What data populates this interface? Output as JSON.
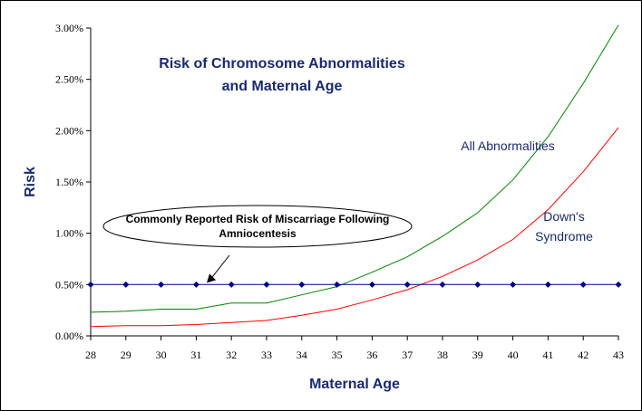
{
  "chart_data": {
    "type": "line",
    "title_lines": [
      "Risk of Chromosome Abnormalities",
      "and Maternal Age"
    ],
    "xlabel": "Maternal Age",
    "ylabel": "Risk",
    "x": [
      28,
      29,
      30,
      31,
      32,
      33,
      34,
      35,
      36,
      37,
      38,
      39,
      40,
      41,
      42,
      43
    ],
    "xlim": [
      28,
      43
    ],
    "ylim": [
      0,
      0.03
    ],
    "yticks": [
      "0.00%",
      "0.50%",
      "1.00%",
      "1.50%",
      "2.00%",
      "2.50%",
      "3.00%"
    ],
    "ytick_values": [
      0,
      0.005,
      0.01,
      0.015,
      0.02,
      0.025,
      0.03
    ],
    "grid": false,
    "series": [
      {
        "name": "All Abnormalities",
        "color": "#008000",
        "values": [
          0.0023,
          0.0024,
          0.0026,
          0.0026,
          0.0032,
          0.0032,
          0.004,
          0.0048,
          0.0062,
          0.0077,
          0.0097,
          0.012,
          0.0152,
          0.0194,
          0.0246,
          0.0303
        ]
      },
      {
        "name": "Down's Syndrome",
        "name_lines": [
          "Down's",
          "Syndrome"
        ],
        "color": "#ff0000",
        "values": [
          0.0009,
          0.001,
          0.001,
          0.0011,
          0.0013,
          0.0015,
          0.002,
          0.0026,
          0.0035,
          0.0045,
          0.0058,
          0.0074,
          0.0094,
          0.0123,
          0.016,
          0.0203
        ]
      },
      {
        "name": "Miscarriage risk",
        "color": "#000080",
        "marker": "diamond",
        "values": [
          0.005,
          0.005,
          0.005,
          0.005,
          0.005,
          0.005,
          0.005,
          0.005,
          0.005,
          0.005,
          0.005,
          0.005,
          0.005,
          0.005,
          0.005,
          0.005
        ]
      }
    ],
    "callout": {
      "lines": [
        "Commonly Reported Risk of Miscarriage Following",
        "Amniocentesis"
      ],
      "points_to_x": 31.3,
      "points_to_y": 0.005
    }
  }
}
